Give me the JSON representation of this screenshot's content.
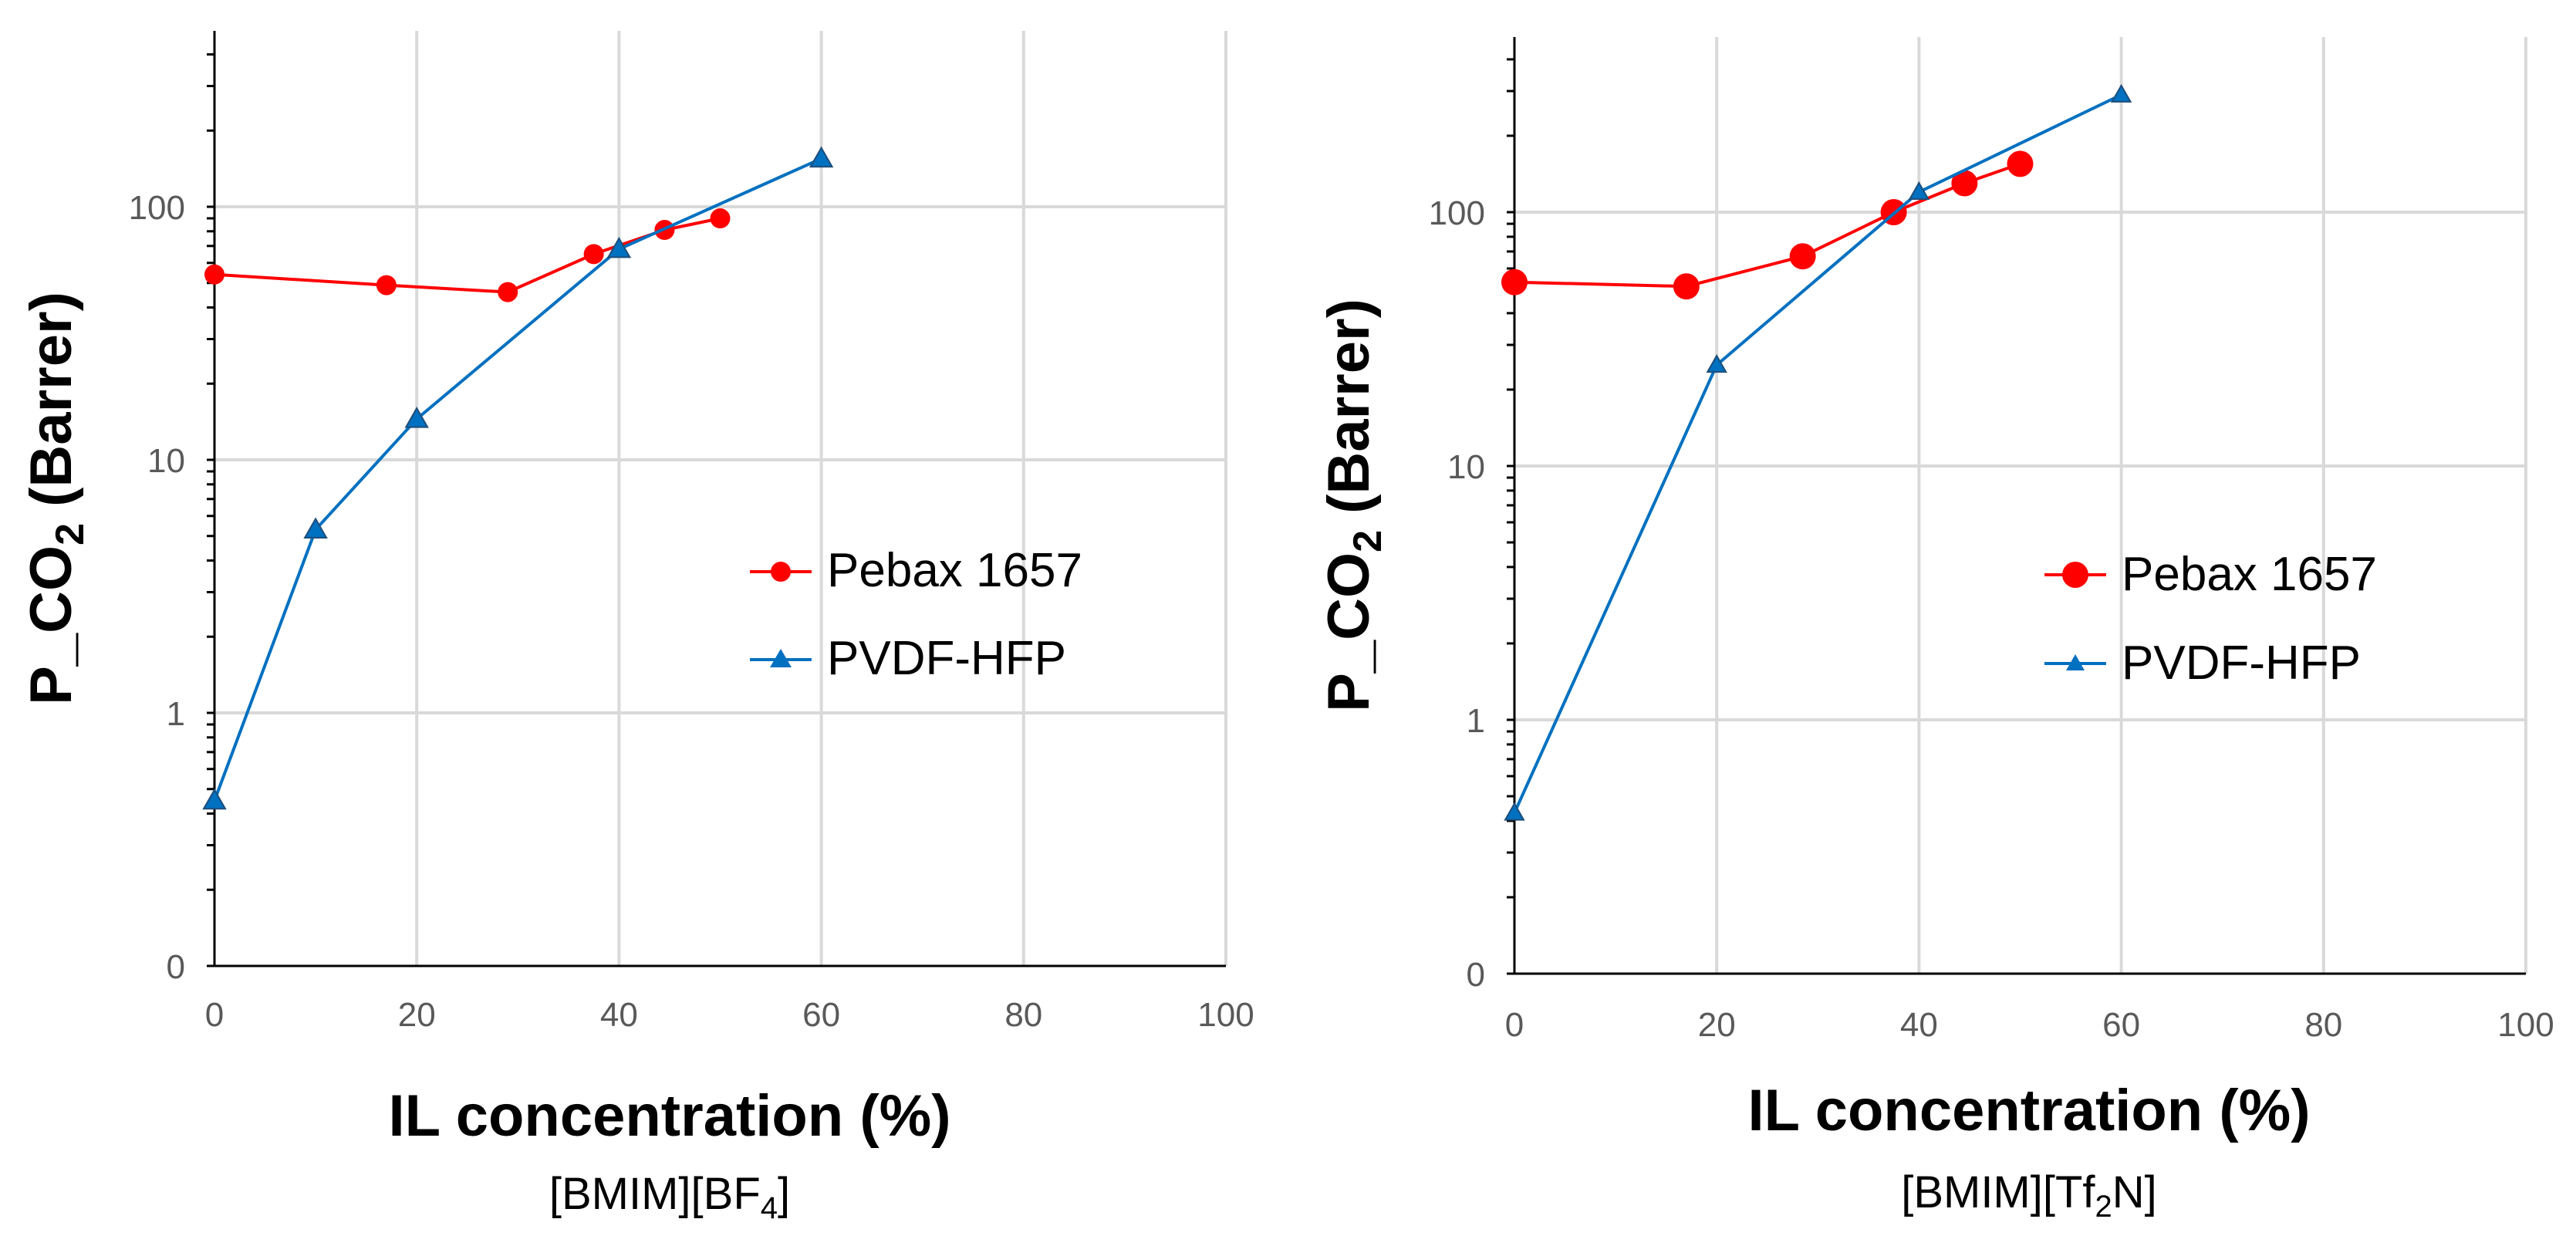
{
  "colors": {
    "pebax": "#ff0000",
    "pvdf": "#0070c0"
  },
  "chart_data": [
    {
      "type": "line",
      "subtitle": "[BMIM][BF4]",
      "subtitle_base": "[BMIM][BF",
      "subtitle_sub": "4",
      "subtitle_tail": "]",
      "xlabel": "IL concentration (%)",
      "ylabel": "P_CO2 (Barrer)",
      "ylabel_base": "P_CO",
      "ylabel_sub": "2",
      "ylabel_tail": " (Barrer)",
      "xlim": [
        0,
        100
      ],
      "x_ticks": [
        "0",
        "20",
        "40",
        "60",
        "80",
        "100"
      ],
      "y_scale": "log",
      "y_tick_labels": [
        "0",
        "1",
        "10",
        "100"
      ],
      "y_tick_values": [
        0.1,
        1,
        10,
        100
      ],
      "ylim": [
        0.1,
        500
      ],
      "legend_position": "center-right",
      "grid": true,
      "series": [
        {
          "name": "Pebax 1657",
          "marker": "circle",
          "x": [
            0,
            17,
            29,
            37.5,
            44.5,
            50
          ],
          "y": [
            54,
            49,
            46,
            65,
            81,
            90
          ]
        },
        {
          "name": "PVDF-HFP",
          "marker": "triangle",
          "x": [
            0,
            10,
            20,
            40,
            60
          ],
          "y": [
            0.45,
            5.3,
            14.5,
            68,
            155
          ]
        }
      ]
    },
    {
      "type": "line",
      "subtitle": "[BMIM][Tf2N]",
      "subtitle_base": "[BMIM][Tf",
      "subtitle_sub": "2",
      "subtitle_tail": "N]",
      "xlabel": "IL concentration (%)",
      "ylabel": "P_CO2 (Barrer)",
      "ylabel_base": "P_CO",
      "ylabel_sub": "2",
      "ylabel_tail": " (Barrer)",
      "xlim": [
        0,
        100
      ],
      "x_ticks": [
        "0",
        "20",
        "40",
        "60",
        "80",
        "100"
      ],
      "y_scale": "log",
      "y_tick_labels": [
        "0",
        "1",
        "10",
        "100"
      ],
      "y_tick_values": [
        0.1,
        1,
        10,
        100
      ],
      "ylim": [
        0.1,
        500
      ],
      "legend_position": "center-right",
      "grid": true,
      "series": [
        {
          "name": "Pebax 1657",
          "marker": "circle",
          "x": [
            0,
            17,
            28.5,
            37.5,
            44.5,
            50
          ],
          "y": [
            53,
            51,
            67,
            100,
            130,
            155
          ]
        },
        {
          "name": "PVDF-HFP",
          "marker": "triangle",
          "x": [
            0,
            20,
            40,
            60
          ],
          "y": [
            0.43,
            25,
            120,
            290
          ]
        }
      ]
    }
  ]
}
